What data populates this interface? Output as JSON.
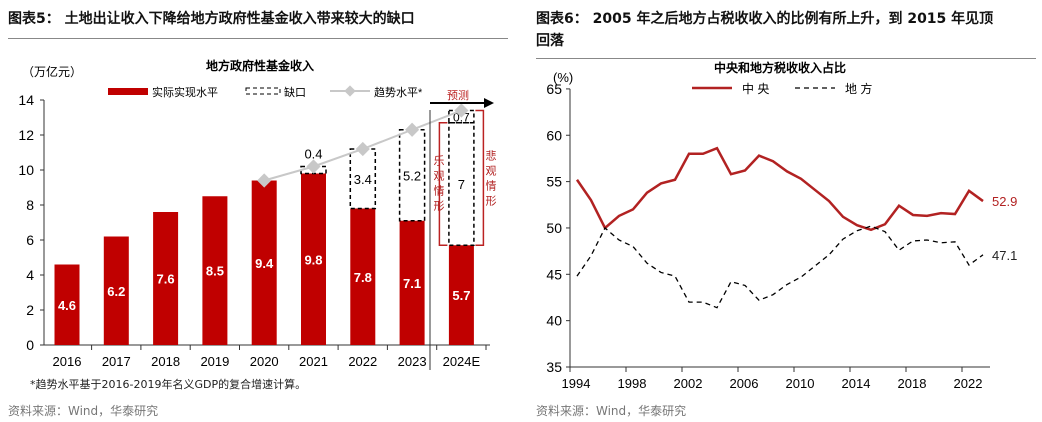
{
  "left": {
    "title": "图表5：  土地出让收入下降给地方政府性基金收入带来较大的缺口",
    "footnote": "*趋势水平基于2016-2019年名义GDP的复合增速计算。",
    "source": "资料来源：Wind，华泰研究"
  },
  "right": {
    "title_line1": "图表6：  2005 年之后地方占税收收入的比例有所上升，到 2015 年见顶",
    "title_line2": "回落",
    "source": "资料来源：Wind，华泰研究"
  },
  "chart_data": [
    {
      "type": "bar",
      "title": "地方政府性基金收入",
      "ylabel": "（万亿元）",
      "ylim": [
        0,
        14
      ],
      "yticks": [
        0,
        2,
        4,
        6,
        8,
        10,
        12,
        14
      ],
      "categories": [
        "2016",
        "2017",
        "2018",
        "2019",
        "2020",
        "2021",
        "2022",
        "2023",
        "2024E"
      ],
      "series": [
        {
          "name": "实际实现水平",
          "values": [
            4.6,
            6.2,
            7.6,
            8.5,
            9.4,
            9.8,
            7.8,
            7.1,
            5.7
          ],
          "color": "#c00000"
        },
        {
          "name": "缺口",
          "values": [
            null,
            null,
            null,
            null,
            null,
            0.4,
            3.4,
            5.2,
            7.0
          ],
          "extra_2024E": 0.7
        },
        {
          "name": "趋势水平*",
          "values": [
            null,
            null,
            null,
            null,
            9.4,
            10.2,
            11.2,
            12.3,
            13.4
          ],
          "color": "#c8c8c8"
        }
      ],
      "annotations": {
        "forecast": "预测",
        "optimistic": "乐观情形",
        "pessimistic": "悲观情形"
      }
    },
    {
      "type": "line",
      "title": "中央和地方税收收入占比",
      "ylabel": "(%)",
      "ylim": [
        35,
        65
      ],
      "yticks": [
        35,
        40,
        45,
        50,
        55,
        60,
        65
      ],
      "xticks": [
        1994,
        1998,
        2002,
        2006,
        2010,
        2014,
        2018,
        2022
      ],
      "x": [
        1994,
        1995,
        1996,
        1997,
        1998,
        1999,
        2000,
        2001,
        2002,
        2003,
        2004,
        2005,
        2006,
        2007,
        2008,
        2009,
        2010,
        2011,
        2012,
        2013,
        2014,
        2015,
        2016,
        2017,
        2018,
        2019,
        2020,
        2021,
        2022,
        2023
      ],
      "series": [
        {
          "name": "中央",
          "color": "#b22222",
          "style": "solid",
          "values": [
            55.2,
            53.0,
            50.0,
            51.3,
            52.0,
            53.8,
            54.8,
            55.2,
            58.0,
            58.0,
            58.6,
            55.8,
            56.2,
            57.8,
            57.2,
            56.1,
            55.3,
            54.1,
            52.9,
            51.2,
            50.3,
            49.8,
            50.4,
            52.4,
            51.4,
            51.3,
            51.6,
            51.5,
            54.0,
            52.9
          ],
          "end_label": "52.9"
        },
        {
          "name": "地方",
          "color": "#000000",
          "style": "dashed",
          "values": [
            44.8,
            47.0,
            50.0,
            48.7,
            48.0,
            46.2,
            45.2,
            44.8,
            42.0,
            42.0,
            41.4,
            44.2,
            43.8,
            42.2,
            42.8,
            43.9,
            44.7,
            45.9,
            47.1,
            48.8,
            49.7,
            50.2,
            49.6,
            47.6,
            48.6,
            48.7,
            48.4,
            48.5,
            46.0,
            47.1
          ],
          "end_label": "47.1"
        }
      ]
    }
  ]
}
